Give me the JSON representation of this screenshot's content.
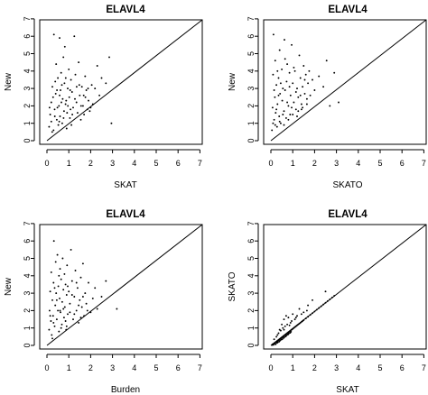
{
  "chart_data": [
    {
      "type": "scatter",
      "title": "ELAVL4",
      "xlabel": "SKAT",
      "ylabel": "New",
      "xlim": [
        0,
        7
      ],
      "ylim": [
        0,
        7
      ],
      "xticks": [
        "0",
        "1",
        "2",
        "3",
        "4",
        "5",
        "6",
        "7"
      ],
      "yticks": [
        "0",
        "1",
        "2",
        "3",
        "4",
        "5",
        "6",
        "7"
      ],
      "reference_line": "y = x",
      "points": [
        [
          0.1,
          0.8
        ],
        [
          0.15,
          1.5
        ],
        [
          0.2,
          2.2
        ],
        [
          0.25,
          3.1
        ],
        [
          0.3,
          0.6
        ],
        [
          0.32,
          6.1
        ],
        [
          0.35,
          1.8
        ],
        [
          0.4,
          2.7
        ],
        [
          0.42,
          4.4
        ],
        [
          0.45,
          1.2
        ],
        [
          0.5,
          3.6
        ],
        [
          0.52,
          0.9
        ],
        [
          0.55,
          2.0
        ],
        [
          0.58,
          5.9
        ],
        [
          0.6,
          1.4
        ],
        [
          0.62,
          2.9
        ],
        [
          0.65,
          3.9
        ],
        [
          0.7,
          1.0
        ],
        [
          0.72,
          2.4
        ],
        [
          0.75,
          4.8
        ],
        [
          0.78,
          1.7
        ],
        [
          0.8,
          3.3
        ],
        [
          0.82,
          5.4
        ],
        [
          0.85,
          2.1
        ],
        [
          0.9,
          0.7
        ],
        [
          0.92,
          1.6
        ],
        [
          0.95,
          3.0
        ],
        [
          1.0,
          4.1
        ],
        [
          1.02,
          2.5
        ],
        [
          1.05,
          1.3
        ],
        [
          1.1,
          3.5
        ],
        [
          1.12,
          0.9
        ],
        [
          1.15,
          2.8
        ],
        [
          1.2,
          1.9
        ],
        [
          1.25,
          6.0
        ],
        [
          1.3,
          3.8
        ],
        [
          1.35,
          2.2
        ],
        [
          1.4,
          1.6
        ],
        [
          1.45,
          4.5
        ],
        [
          1.5,
          2.6
        ],
        [
          1.55,
          1.2
        ],
        [
          1.6,
          3.1
        ],
        [
          1.65,
          2.0
        ],
        [
          1.7,
          1.5
        ],
        [
          1.75,
          3.7
        ],
        [
          1.8,
          2.9
        ],
        [
          1.85,
          1.8
        ],
        [
          1.9,
          2.3
        ],
        [
          2.0,
          1.9
        ],
        [
          2.05,
          3.2
        ],
        [
          2.1,
          2.1
        ],
        [
          2.2,
          3.0
        ],
        [
          2.3,
          4.3
        ],
        [
          2.4,
          2.6
        ],
        [
          2.5,
          3.6
        ],
        [
          2.7,
          3.3
        ],
        [
          2.85,
          4.8
        ],
        [
          2.95,
          1.0
        ],
        [
          0.2,
          1.1
        ],
        [
          0.28,
          2.5
        ],
        [
          0.38,
          3.4
        ],
        [
          0.48,
          1.9
        ],
        [
          0.58,
          2.6
        ],
        [
          0.68,
          3.2
        ],
        [
          0.88,
          2.3
        ],
        [
          1.08,
          1.8
        ],
        [
          1.28,
          2.4
        ],
        [
          1.48,
          3.2
        ],
        [
          1.68,
          2.6
        ],
        [
          1.88,
          3.0
        ],
        [
          0.12,
          1.9
        ],
        [
          0.24,
          0.5
        ],
        [
          0.36,
          1.4
        ],
        [
          0.46,
          2.9
        ],
        [
          0.56,
          1.1
        ],
        [
          0.66,
          2.2
        ],
        [
          0.76,
          1.3
        ],
        [
          0.86,
          3.6
        ],
        [
          0.96,
          2.0
        ],
        [
          1.06,
          2.9
        ],
        [
          1.16,
          1.5
        ],
        [
          1.36,
          3.1
        ],
        [
          1.56,
          2.0
        ],
        [
          1.76,
          2.5
        ],
        [
          1.96,
          1.7
        ]
      ]
    },
    {
      "type": "scatter",
      "title": "ELAVL4",
      "xlabel": "SKATO",
      "ylabel": "New",
      "xlim": [
        0,
        7
      ],
      "ylim": [
        0,
        7
      ],
      "xticks": [
        "0",
        "1",
        "2",
        "3",
        "4",
        "5",
        "6",
        "7"
      ],
      "yticks": [
        "0",
        "1",
        "2",
        "3",
        "4",
        "5",
        "6",
        "7"
      ],
      "reference_line": "y = x",
      "points": [
        [
          0.05,
          0.6
        ],
        [
          0.08,
          1.9
        ],
        [
          0.1,
          3.8
        ],
        [
          0.12,
          6.1
        ],
        [
          0.15,
          1.2
        ],
        [
          0.18,
          2.5
        ],
        [
          0.2,
          4.6
        ],
        [
          0.22,
          1.6
        ],
        [
          0.25,
          3.2
        ],
        [
          0.28,
          0.8
        ],
        [
          0.3,
          2.1
        ],
        [
          0.35,
          3.6
        ],
        [
          0.38,
          1.4
        ],
        [
          0.4,
          5.2
        ],
        [
          0.42,
          2.7
        ],
        [
          0.45,
          1.0
        ],
        [
          0.5,
          4.1
        ],
        [
          0.52,
          2.3
        ],
        [
          0.55,
          3.0
        ],
        [
          0.6,
          1.7
        ],
        [
          0.62,
          5.8
        ],
        [
          0.65,
          2.9
        ],
        [
          0.7,
          1.3
        ],
        [
          0.72,
          3.4
        ],
        [
          0.75,
          4.4
        ],
        [
          0.8,
          2.0
        ],
        [
          0.85,
          3.9
        ],
        [
          0.88,
          1.5
        ],
        [
          0.9,
          2.6
        ],
        [
          0.95,
          5.5
        ],
        [
          1.0,
          3.3
        ],
        [
          1.05,
          2.2
        ],
        [
          1.1,
          4.0
        ],
        [
          1.15,
          1.8
        ],
        [
          1.2,
          3.0
        ],
        [
          1.25,
          2.5
        ],
        [
          1.3,
          4.9
        ],
        [
          1.35,
          3.6
        ],
        [
          1.4,
          2.1
        ],
        [
          1.45,
          3.1
        ],
        [
          1.5,
          4.3
        ],
        [
          1.55,
          2.7
        ],
        [
          1.6,
          3.8
        ],
        [
          1.65,
          2.4
        ],
        [
          1.7,
          3.3
        ],
        [
          1.8,
          2.6
        ],
        [
          1.9,
          3.5
        ],
        [
          2.0,
          2.9
        ],
        [
          2.2,
          3.7
        ],
        [
          2.4,
          3.1
        ],
        [
          2.55,
          4.6
        ],
        [
          2.7,
          2.0
        ],
        [
          2.9,
          3.9
        ],
        [
          3.1,
          2.2
        ],
        [
          0.1,
          1.0
        ],
        [
          0.15,
          2.9
        ],
        [
          0.2,
          0.9
        ],
        [
          0.25,
          1.8
        ],
        [
          0.3,
          4.0
        ],
        [
          0.35,
          2.6
        ],
        [
          0.45,
          3.3
        ],
        [
          0.55,
          1.5
        ],
        [
          0.65,
          4.7
        ],
        [
          0.75,
          2.2
        ],
        [
          0.85,
          3.1
        ],
        [
          0.95,
          1.9
        ],
        [
          1.05,
          4.2
        ],
        [
          1.15,
          2.8
        ],
        [
          1.25,
          1.7
        ],
        [
          1.35,
          2.6
        ],
        [
          1.45,
          1.9
        ],
        [
          1.55,
          3.5
        ],
        [
          1.65,
          2.1
        ],
        [
          1.75,
          4.0
        ],
        [
          0.4,
          1.1
        ],
        [
          0.6,
          0.9
        ],
        [
          0.8,
          1.2
        ],
        [
          1.0,
          1.5
        ],
        [
          1.2,
          1.4
        ],
        [
          1.4,
          1.8
        ]
      ]
    },
    {
      "type": "scatter",
      "title": "ELAVL4",
      "xlabel": "Burden",
      "ylabel": "New",
      "xlim": [
        0,
        7
      ],
      "ylim": [
        0,
        7
      ],
      "xticks": [
        "0",
        "1",
        "2",
        "3",
        "4",
        "5",
        "6",
        "7"
      ],
      "yticks": [
        "0",
        "1",
        "2",
        "3",
        "4",
        "5",
        "6",
        "7"
      ],
      "reference_line": "y = x",
      "points": [
        [
          0.1,
          0.9
        ],
        [
          0.12,
          2.0
        ],
        [
          0.15,
          3.1
        ],
        [
          0.18,
          1.4
        ],
        [
          0.2,
          4.2
        ],
        [
          0.22,
          0.6
        ],
        [
          0.25,
          2.6
        ],
        [
          0.28,
          1.7
        ],
        [
          0.3,
          3.6
        ],
        [
          0.32,
          6.0
        ],
        [
          0.35,
          1.1
        ],
        [
          0.38,
          2.3
        ],
        [
          0.4,
          4.8
        ],
        [
          0.42,
          3.0
        ],
        [
          0.45,
          1.5
        ],
        [
          0.48,
          5.2
        ],
        [
          0.5,
          2.0
        ],
        [
          0.52,
          3.4
        ],
        [
          0.55,
          0.8
        ],
        [
          0.58,
          2.7
        ],
        [
          0.6,
          4.4
        ],
        [
          0.62,
          1.9
        ],
        [
          0.65,
          3.8
        ],
        [
          0.68,
          1.2
        ],
        [
          0.7,
          2.5
        ],
        [
          0.72,
          5.0
        ],
        [
          0.75,
          3.2
        ],
        [
          0.78,
          1.6
        ],
        [
          0.8,
          4.1
        ],
        [
          0.82,
          2.2
        ],
        [
          0.85,
          3.5
        ],
        [
          0.88,
          0.9
        ],
        [
          0.9,
          2.9
        ],
        [
          0.92,
          4.6
        ],
        [
          0.95,
          1.8
        ],
        [
          1.0,
          3.1
        ],
        [
          1.05,
          2.4
        ],
        [
          1.1,
          5.5
        ],
        [
          1.15,
          3.7
        ],
        [
          1.2,
          1.5
        ],
        [
          1.25,
          2.8
        ],
        [
          1.3,
          4.3
        ],
        [
          1.35,
          2.0
        ],
        [
          1.4,
          3.3
        ],
        [
          1.45,
          1.3
        ],
        [
          1.5,
          2.6
        ],
        [
          1.55,
          3.9
        ],
        [
          1.6,
          2.2
        ],
        [
          1.65,
          4.7
        ],
        [
          1.7,
          1.7
        ],
        [
          1.75,
          3.0
        ],
        [
          1.8,
          2.4
        ],
        [
          1.9,
          3.6
        ],
        [
          2.0,
          1.9
        ],
        [
          2.1,
          2.7
        ],
        [
          2.2,
          3.3
        ],
        [
          2.3,
          2.1
        ],
        [
          2.5,
          2.8
        ],
        [
          2.7,
          3.7
        ],
        [
          3.2,
          2.1
        ],
        [
          0.15,
          1.7
        ],
        [
          0.25,
          0.4
        ],
        [
          0.35,
          3.3
        ],
        [
          0.45,
          2.6
        ],
        [
          0.55,
          4.0
        ],
        [
          0.65,
          1.0
        ],
        [
          0.75,
          2.1
        ],
        [
          0.85,
          1.4
        ],
        [
          0.95,
          3.4
        ],
        [
          1.05,
          1.9
        ],
        [
          1.15,
          2.9
        ],
        [
          1.25,
          1.8
        ],
        [
          1.35,
          3.6
        ],
        [
          1.45,
          2.3
        ],
        [
          1.55,
          1.6
        ],
        [
          1.65,
          2.8
        ],
        [
          1.85,
          2.0
        ],
        [
          0.3,
          1.3
        ],
        [
          0.6,
          2.0
        ],
        [
          0.9,
          1.1
        ]
      ]
    },
    {
      "type": "scatter",
      "title": "ELAVL4",
      "xlabel": "SKAT",
      "ylabel": "SKATO",
      "xlim": [
        0,
        7
      ],
      "ylim": [
        0,
        7
      ],
      "xticks": [
        "0",
        "1",
        "2",
        "3",
        "4",
        "5",
        "6",
        "7"
      ],
      "yticks": [
        "0",
        "1",
        "2",
        "3",
        "4",
        "5",
        "6",
        "7"
      ],
      "reference_line": "y = x",
      "points": [
        [
          0.05,
          0.02
        ],
        [
          0.08,
          0.05
        ],
        [
          0.1,
          0.08
        ],
        [
          0.12,
          0.03
        ],
        [
          0.15,
          0.12
        ],
        [
          0.18,
          0.1
        ],
        [
          0.2,
          0.15
        ],
        [
          0.22,
          0.06
        ],
        [
          0.25,
          0.2
        ],
        [
          0.28,
          0.14
        ],
        [
          0.3,
          0.25
        ],
        [
          0.32,
          0.18
        ],
        [
          0.35,
          0.3
        ],
        [
          0.38,
          0.22
        ],
        [
          0.4,
          0.35
        ],
        [
          0.42,
          0.28
        ],
        [
          0.45,
          0.4
        ],
        [
          0.48,
          0.33
        ],
        [
          0.5,
          0.45
        ],
        [
          0.52,
          0.36
        ],
        [
          0.55,
          0.5
        ],
        [
          0.58,
          0.42
        ],
        [
          0.6,
          0.55
        ],
        [
          0.62,
          0.47
        ],
        [
          0.65,
          0.6
        ],
        [
          0.68,
          0.52
        ],
        [
          0.7,
          0.65
        ],
        [
          0.72,
          0.58
        ],
        [
          0.75,
          0.7
        ],
        [
          0.78,
          0.62
        ],
        [
          0.8,
          0.75
        ],
        [
          0.82,
          0.68
        ],
        [
          0.85,
          0.8
        ],
        [
          0.88,
          0.72
        ],
        [
          0.9,
          0.85
        ],
        [
          0.92,
          0.78
        ],
        [
          0.95,
          0.9
        ],
        [
          1.0,
          0.95
        ],
        [
          1.05,
          1.0
        ],
        [
          1.1,
          1.05
        ],
        [
          1.15,
          1.1
        ],
        [
          1.2,
          1.15
        ],
        [
          1.25,
          1.2
        ],
        [
          1.3,
          1.25
        ],
        [
          1.35,
          1.3
        ],
        [
          1.4,
          1.35
        ],
        [
          1.45,
          1.4
        ],
        [
          1.5,
          1.45
        ],
        [
          1.6,
          1.55
        ],
        [
          1.7,
          1.65
        ],
        [
          1.8,
          1.75
        ],
        [
          1.9,
          1.85
        ],
        [
          2.0,
          1.95
        ],
        [
          2.1,
          2.05
        ],
        [
          2.2,
          2.15
        ],
        [
          2.3,
          2.25
        ],
        [
          2.4,
          2.35
        ],
        [
          2.5,
          2.45
        ],
        [
          2.6,
          2.55
        ],
        [
          2.7,
          2.65
        ],
        [
          2.8,
          2.75
        ],
        [
          2.9,
          2.85
        ],
        [
          0.5,
          1.2
        ],
        [
          0.6,
          1.5
        ],
        [
          0.7,
          1.7
        ],
        [
          0.8,
          1.6
        ],
        [
          0.9,
          1.3
        ],
        [
          1.0,
          1.8
        ],
        [
          1.1,
          1.5
        ],
        [
          1.2,
          1.7
        ],
        [
          1.3,
          2.1
        ],
        [
          1.5,
          1.9
        ],
        [
          1.7,
          2.3
        ],
        [
          1.9,
          2.6
        ],
        [
          2.5,
          3.1
        ],
        [
          0.3,
          0.6
        ],
        [
          0.4,
          0.9
        ],
        [
          0.6,
          0.9
        ],
        [
          0.75,
          1.2
        ],
        [
          0.95,
          1.4
        ],
        [
          1.15,
          1.6
        ],
        [
          1.4,
          1.8
        ],
        [
          1.65,
          2.0
        ],
        [
          0.15,
          0.35
        ],
        [
          0.25,
          0.5
        ],
        [
          0.35,
          0.7
        ],
        [
          0.45,
          0.85
        ],
        [
          0.55,
          1.0
        ],
        [
          0.65,
          1.1
        ],
        [
          0.85,
          1.15
        ]
      ]
    }
  ]
}
